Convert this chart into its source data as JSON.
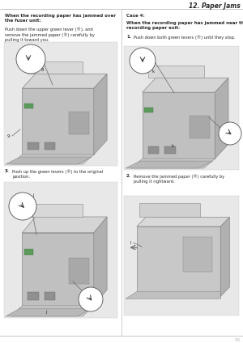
{
  "page_bg": "#ffffff",
  "title_text": "12. Paper Jams",
  "page_number": "91",
  "divider_color": "#bbbbbb",
  "text_color": "#2a2a2a",
  "img_color": "#c8c8c8",
  "left": {
    "head1": "When the recording paper has jammed over\nthe fuser unit:",
    "para1": "Push down the upper green lever (®), and\nremove the jammed paper (®) carefully by\npulling it toward you.",
    "step3_num": "3.",
    "step3_text": "Push up the green levers (®) to the original\nposition."
  },
  "right": {
    "case_head": "Case 4:",
    "case_sub": "When the recording paper has jammed near the\nrecording paper exit:",
    "step1_num": "1.",
    "step1_text": "Push down both green levers (®) until they stop.",
    "step2_num": "2.",
    "step2_text": "Remove the jammed paper (®) carefully by\npulling it rightward."
  }
}
